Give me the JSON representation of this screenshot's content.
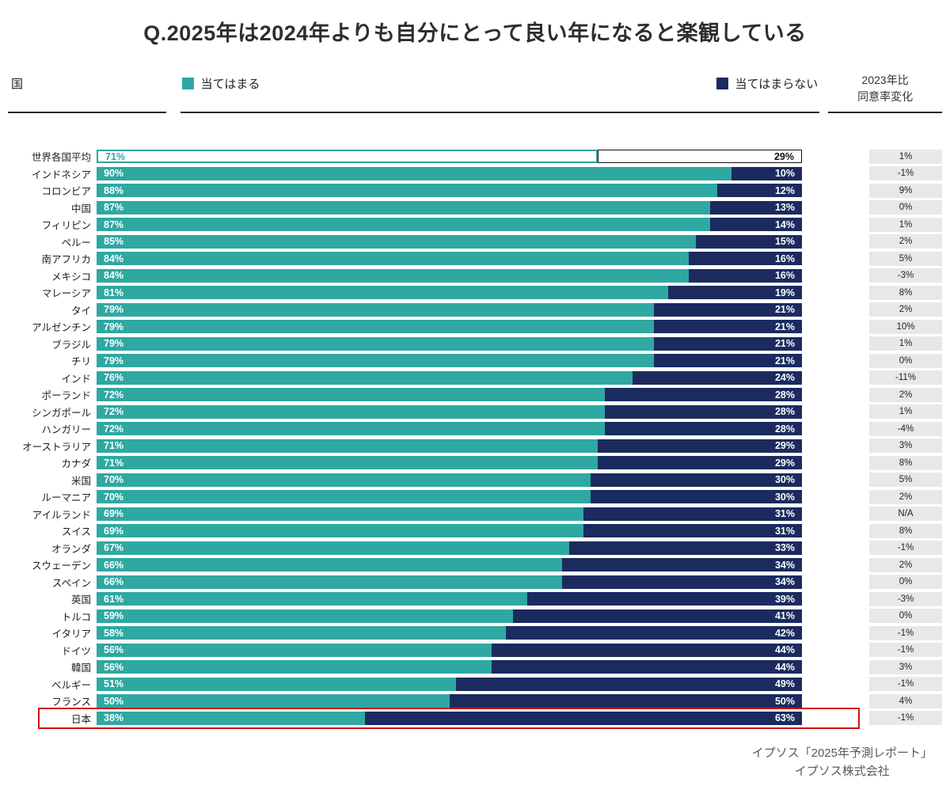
{
  "title": "Q.2025年は2024年よりも自分にとって良い年になると楽観している",
  "header": {
    "country_label": "国",
    "agree_label": "当てはまる",
    "disagree_label": "当てはまらない",
    "change_label_line1": "2023年比",
    "change_label_line2": "同意率変化"
  },
  "colors": {
    "agree": "#2fa8a2",
    "disagree": "#1b2b5f",
    "highlight": "#cf1312",
    "change_bg": "#e8e8e8"
  },
  "footer": {
    "line1": "イプソス「2025年予測レポート」",
    "line2": "イプソス株式会社"
  },
  "chart_data": {
    "type": "bar",
    "orientation": "horizontal-stacked",
    "title": "Q.2025年は2024年よりも自分にとって良い年になると楽観している",
    "series_names": [
      "当てはまる",
      "当てはまらない"
    ],
    "xlim": [
      0,
      100
    ],
    "value_suffix": "%",
    "extra_column": "2023年比 同意率変化",
    "rows": [
      {
        "country": "世界各国平均",
        "agree": 71,
        "disagree": 29,
        "change": "1%",
        "outline": true
      },
      {
        "country": "インドネシア",
        "agree": 90,
        "disagree": 10,
        "change": "-1%"
      },
      {
        "country": "コロンビア",
        "agree": 88,
        "disagree": 12,
        "change": "9%"
      },
      {
        "country": "中国",
        "agree": 87,
        "disagree": 13,
        "change": "0%"
      },
      {
        "country": "フィリピン",
        "agree": 87,
        "disagree": 14,
        "change": "1%"
      },
      {
        "country": "ペルー",
        "agree": 85,
        "disagree": 15,
        "change": "2%"
      },
      {
        "country": "南アフリカ",
        "agree": 84,
        "disagree": 16,
        "change": "5%"
      },
      {
        "country": "メキシコ",
        "agree": 84,
        "disagree": 16,
        "change": "-3%"
      },
      {
        "country": "マレーシア",
        "agree": 81,
        "disagree": 19,
        "change": "8%"
      },
      {
        "country": "タイ",
        "agree": 79,
        "disagree": 21,
        "change": "2%"
      },
      {
        "country": "アルゼンチン",
        "agree": 79,
        "disagree": 21,
        "change": "10%"
      },
      {
        "country": "ブラジル",
        "agree": 79,
        "disagree": 21,
        "change": "1%"
      },
      {
        "country": "チリ",
        "agree": 79,
        "disagree": 21,
        "change": "0%"
      },
      {
        "country": "インド",
        "agree": 76,
        "disagree": 24,
        "change": "-11%"
      },
      {
        "country": "ポーランド",
        "agree": 72,
        "disagree": 28,
        "change": "2%"
      },
      {
        "country": "シンガポール",
        "agree": 72,
        "disagree": 28,
        "change": "1%"
      },
      {
        "country": "ハンガリー",
        "agree": 72,
        "disagree": 28,
        "change": "-4%"
      },
      {
        "country": "オーストラリア",
        "agree": 71,
        "disagree": 29,
        "change": "3%"
      },
      {
        "country": "カナダ",
        "agree": 71,
        "disagree": 29,
        "change": "8%"
      },
      {
        "country": "米国",
        "agree": 70,
        "disagree": 30,
        "change": "5%"
      },
      {
        "country": "ルーマニア",
        "agree": 70,
        "disagree": 30,
        "change": "2%"
      },
      {
        "country": "アイルランド",
        "agree": 69,
        "disagree": 31,
        "change": "N/A"
      },
      {
        "country": "スイス",
        "agree": 69,
        "disagree": 31,
        "change": "8%"
      },
      {
        "country": "オランダ",
        "agree": 67,
        "disagree": 33,
        "change": "-1%"
      },
      {
        "country": "スウェーデン",
        "agree": 66,
        "disagree": 34,
        "change": "2%"
      },
      {
        "country": "スペイン",
        "agree": 66,
        "disagree": 34,
        "change": "0%"
      },
      {
        "country": "英国",
        "agree": 61,
        "disagree": 39,
        "change": "-3%"
      },
      {
        "country": "トルコ",
        "agree": 59,
        "disagree": 41,
        "change": "0%"
      },
      {
        "country": "イタリア",
        "agree": 58,
        "disagree": 42,
        "change": "-1%"
      },
      {
        "country": "ドイツ",
        "agree": 56,
        "disagree": 44,
        "change": "-1%"
      },
      {
        "country": "韓国",
        "agree": 56,
        "disagree": 44,
        "change": "3%"
      },
      {
        "country": "ベルギー",
        "agree": 51,
        "disagree": 49,
        "change": "-1%"
      },
      {
        "country": "フランス",
        "agree": 50,
        "disagree": 50,
        "change": "4%"
      },
      {
        "country": "日本",
        "agree": 38,
        "disagree": 63,
        "change": "-1%",
        "highlight": true
      }
    ]
  }
}
